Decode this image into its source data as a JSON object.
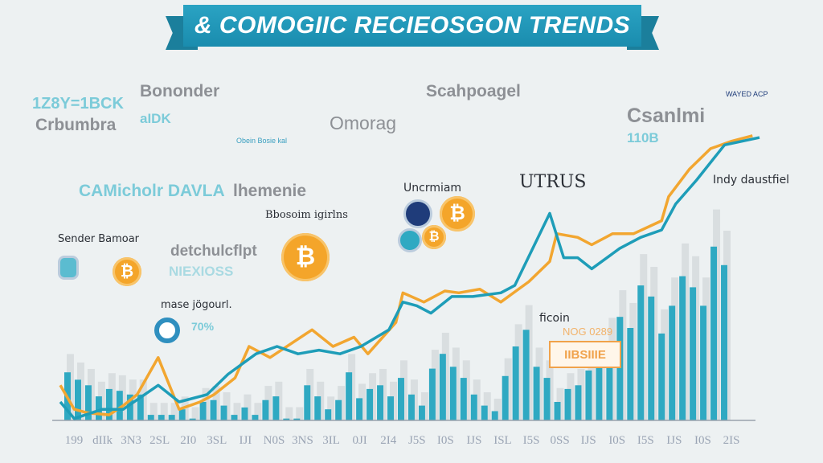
{
  "banner": {
    "title": "& COMOGIIC RECIEOSGON TRENDS"
  },
  "annotations": {
    "a1": "1Z8Y=1BCK",
    "a2": "Crbumbra",
    "a3": "Bonondеr",
    "a4": "aIDK",
    "a5": "CAMicholr DAVLA",
    "a6": "lhemenie",
    "a7": "Omorag",
    "a8": "Obein Bosie kal",
    "a9": "Scahpoagel",
    "a10": "Csanlmi",
    "a11": "110B",
    "a12": "Uncrmiam",
    "a13": "UTRUS",
    "a14": "Indy daustfiel",
    "a15": "Bbosoim igirlns",
    "a16": "Sender Bamoar",
    "a17": "detchulcflpt",
    "a18": "NIEXIOSS",
    "a19": "mase jögourl.",
    "a20": "70%",
    "a21": "ficoin",
    "a22": "NOG 0289",
    "a23": "IIBSIIIE",
    "a24": "WAYED ACP"
  },
  "coin_symbol": "₿",
  "colors": {
    "bars": "#2fa9c2",
    "ghost_bars": "#c9cdd2",
    "line_orange": "#f2a630",
    "line_teal": "#1e9db8",
    "banner": "#2198b9"
  },
  "chart_data": {
    "type": "bar",
    "title": "& COMOGIIC RECIEOSGON TRENDS",
    "xlabel": "",
    "ylabel": "",
    "xlim": [
      0,
      100
    ],
    "ylim": [
      0,
      160
    ],
    "grid": false,
    "x_tick_labels": [
      "199",
      "dIIk",
      "3N3",
      "2SL",
      "2I0",
      "3SL",
      "IJI",
      "N0S",
      "3NS",
      "3IL",
      "0JI",
      "2I4",
      "J5S",
      "I0S",
      "IJS",
      "ISL",
      "I5S",
      "0SS",
      "IJS",
      "I0S",
      "I5S",
      "IJS",
      "I0S",
      "2IS"
    ],
    "bars": [
      26,
      22,
      19,
      13,
      17,
      16,
      14,
      14,
      3,
      3,
      3,
      6,
      1,
      10,
      11,
      8,
      3,
      7,
      3,
      11,
      13,
      1,
      1,
      19,
      13,
      6,
      11,
      26,
      12,
      17,
      19,
      13,
      23,
      14,
      8,
      28,
      36,
      29,
      23,
      14,
      8,
      5,
      24,
      40,
      49,
      29,
      23,
      10,
      17,
      19,
      27,
      29,
      43,
      56,
      50,
      73,
      67,
      47,
      62,
      78,
      72,
      62,
      94,
      84
    ],
    "series": [
      {
        "name": "orange",
        "points": [
          [
            0,
            19
          ],
          [
            2,
            6
          ],
          [
            4,
            4
          ],
          [
            7,
            3
          ],
          [
            9,
            8
          ],
          [
            11,
            14
          ],
          [
            14,
            34
          ],
          [
            17,
            6
          ],
          [
            20,
            10
          ],
          [
            22,
            14
          ],
          [
            25,
            23
          ],
          [
            27,
            40
          ],
          [
            30,
            34
          ],
          [
            36,
            49
          ],
          [
            39,
            40
          ],
          [
            42,
            45
          ],
          [
            44,
            36
          ],
          [
            48,
            53
          ],
          [
            49,
            69
          ],
          [
            52,
            64
          ],
          [
            55,
            70
          ],
          [
            57,
            69
          ],
          [
            60,
            71
          ],
          [
            63,
            64
          ],
          [
            67,
            75
          ],
          [
            70,
            86
          ],
          [
            71,
            101
          ],
          [
            74,
            99
          ],
          [
            76,
            95
          ],
          [
            79,
            101
          ],
          [
            82,
            101
          ],
          [
            86,
            108
          ],
          [
            87,
            121
          ],
          [
            90,
            136
          ],
          [
            93,
            147
          ],
          [
            96,
            151
          ],
          [
            99,
            154
          ]
        ]
      },
      {
        "name": "teal",
        "points": [
          [
            0,
            10
          ],
          [
            2,
            1
          ],
          [
            6,
            6
          ],
          [
            9,
            6
          ],
          [
            14,
            19
          ],
          [
            17,
            10
          ],
          [
            21,
            14
          ],
          [
            24,
            25
          ],
          [
            28,
            36
          ],
          [
            31,
            40
          ],
          [
            34,
            36
          ],
          [
            37,
            38
          ],
          [
            40,
            36
          ],
          [
            43,
            40
          ],
          [
            47,
            49
          ],
          [
            49,
            64
          ],
          [
            51,
            62
          ],
          [
            53,
            58
          ],
          [
            56,
            67
          ],
          [
            59,
            67
          ],
          [
            63,
            69
          ],
          [
            65,
            73
          ],
          [
            70,
            112
          ],
          [
            72,
            88
          ],
          [
            74,
            88
          ],
          [
            76,
            82
          ],
          [
            80,
            93
          ],
          [
            83,
            99
          ],
          [
            86,
            103
          ],
          [
            88,
            117
          ],
          [
            91,
            130
          ],
          [
            95,
            149
          ],
          [
            100,
            153
          ]
        ]
      }
    ]
  }
}
